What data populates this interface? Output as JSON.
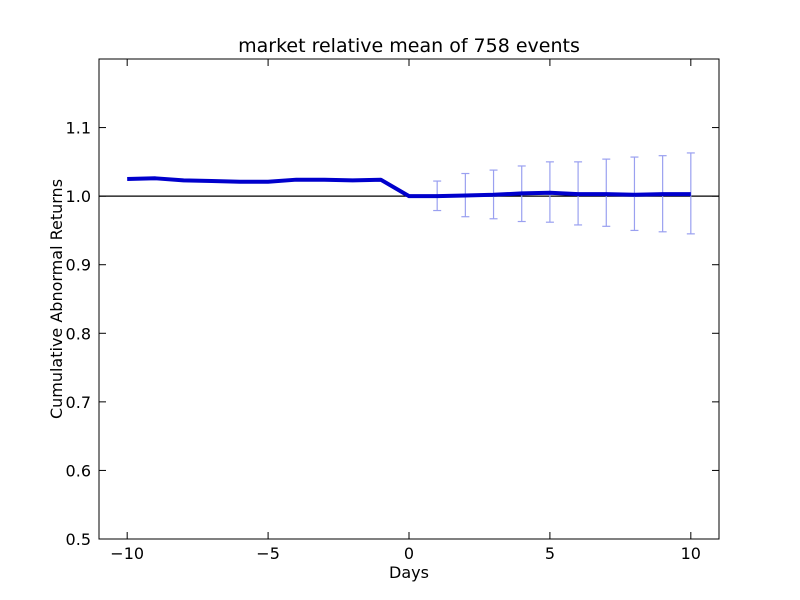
{
  "chart_data": {
    "type": "line",
    "title": "market relative mean of 758 events",
    "xlabel": "Days",
    "ylabel": "Cumulative Abnormal Returns",
    "xlim": [
      -11,
      11
    ],
    "ylim": [
      0.5,
      1.2
    ],
    "xticks": [
      -10,
      -5,
      0,
      5,
      10
    ],
    "xtick_labels": [
      "−10",
      "−5",
      "0",
      "5",
      "10"
    ],
    "yticks": [
      0.5,
      0.6,
      0.7,
      0.8,
      0.9,
      1.0,
      1.1
    ],
    "ytick_labels": [
      "0.5",
      "0.6",
      "0.7",
      "0.8",
      "0.9",
      "1.0",
      "1.1"
    ],
    "grid": false,
    "reference_line": {
      "y": 1.0,
      "color": "#000000"
    },
    "series": [
      {
        "color": "#0000cc",
        "x": [
          -10,
          -9,
          -8,
          -7,
          -6,
          -5,
          -4,
          -3,
          -2,
          -1,
          0,
          1,
          2,
          3,
          4,
          5,
          6,
          7,
          8,
          9,
          10
        ],
        "y": [
          1.025,
          1.026,
          1.023,
          1.022,
          1.021,
          1.021,
          1.024,
          1.024,
          1.023,
          1.024,
          1.0,
          1.0,
          1.001,
          1.002,
          1.004,
          1.005,
          1.003,
          1.003,
          1.002,
          1.003,
          1.003
        ]
      }
    ],
    "error_bars": {
      "color": "#9aa0f0",
      "x": [
        1,
        2,
        3,
        4,
        5,
        6,
        7,
        8,
        9,
        10
      ],
      "lower": [
        0.979,
        0.97,
        0.967,
        0.963,
        0.962,
        0.958,
        0.956,
        0.95,
        0.948,
        0.945
      ],
      "upper": [
        1.022,
        1.033,
        1.038,
        1.044,
        1.05,
        1.05,
        1.054,
        1.057,
        1.059,
        1.063
      ]
    }
  }
}
